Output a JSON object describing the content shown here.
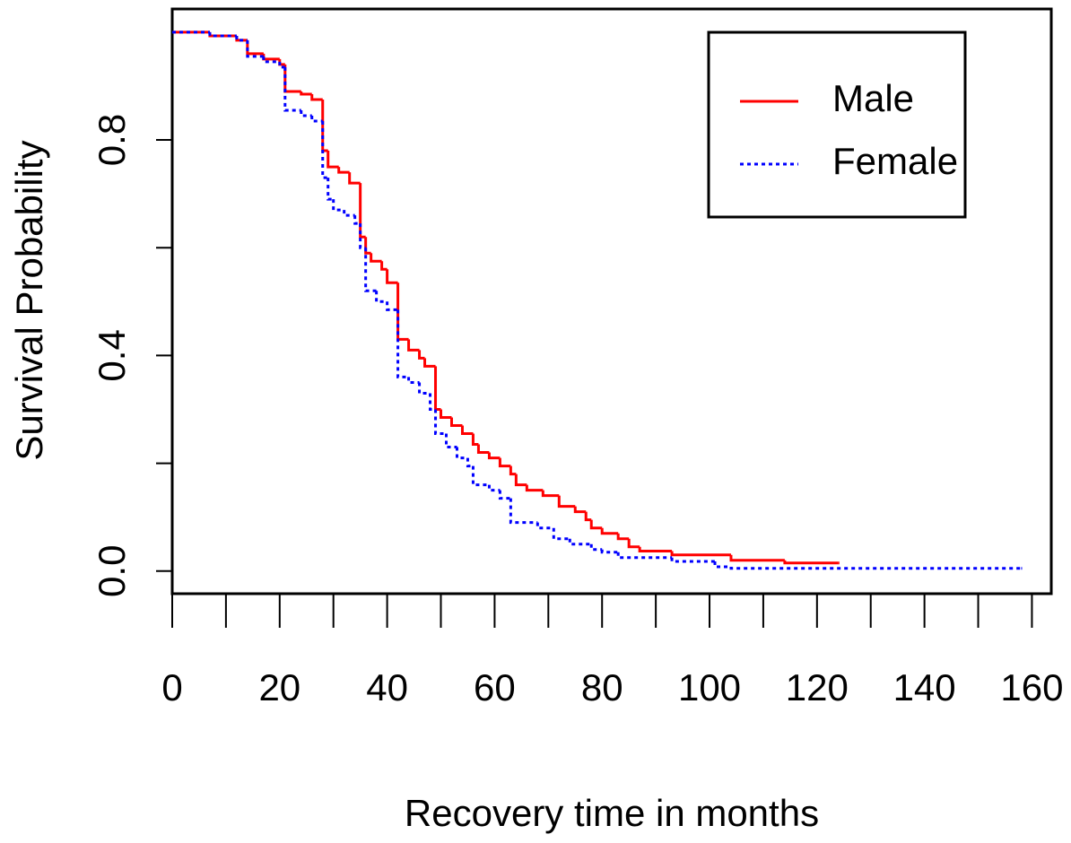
{
  "chart_data": {
    "type": "step",
    "xlabel": "Recovery time in months",
    "ylabel": "Survival Probability",
    "xlim": [
      0,
      163.6
    ],
    "ylim": [
      -0.042,
      1.043
    ],
    "xticks": [
      0,
      20,
      40,
      60,
      80,
      100,
      120,
      140,
      160
    ],
    "xticks_unlabeled": [
      10,
      30,
      50,
      70,
      90,
      110,
      130,
      150
    ],
    "yticks": [
      {
        "value": 0,
        "label": "0.0"
      },
      0.4,
      0.8
    ],
    "yticks_unlabeled": [
      0.2,
      0.6
    ],
    "legend": "topright",
    "series": [
      {
        "name": "Male",
        "color": "#ff0000",
        "dash": "solid",
        "x": [
          0,
          7,
          12,
          14,
          17,
          20,
          21,
          24,
          26,
          28,
          29,
          31,
          33,
          35,
          36,
          37,
          39,
          40,
          42,
          44,
          46,
          47,
          49,
          50,
          52,
          54,
          56,
          57,
          59,
          61,
          63,
          64,
          66,
          69,
          72,
          75,
          77,
          78,
          80,
          83,
          85,
          87,
          93,
          104,
          114,
          124
        ],
        "values": [
          1.0,
          0.993,
          0.985,
          0.96,
          0.95,
          0.94,
          0.89,
          0.885,
          0.875,
          0.78,
          0.75,
          0.74,
          0.72,
          0.62,
          0.59,
          0.575,
          0.56,
          0.535,
          0.43,
          0.41,
          0.395,
          0.38,
          0.3,
          0.285,
          0.27,
          0.255,
          0.235,
          0.22,
          0.21,
          0.195,
          0.18,
          0.16,
          0.15,
          0.14,
          0.12,
          0.11,
          0.095,
          0.08,
          0.07,
          0.06,
          0.045,
          0.037,
          0.03,
          0.02,
          0.015,
          0.015
        ]
      },
      {
        "name": "Female",
        "color": "#0000ff",
        "dash": "dotted",
        "x": [
          0,
          7,
          12,
          14,
          17,
          20,
          21,
          24,
          26,
          28,
          29,
          30,
          32,
          34,
          35,
          36,
          38,
          40,
          42,
          44,
          46,
          48,
          49,
          51,
          53,
          55,
          56,
          59,
          61,
          63,
          68,
          71,
          74,
          78,
          80,
          83,
          93,
          101,
          104,
          158
        ],
        "values": [
          1.0,
          0.993,
          0.985,
          0.955,
          0.945,
          0.935,
          0.855,
          0.845,
          0.835,
          0.73,
          0.69,
          0.67,
          0.66,
          0.645,
          0.6,
          0.52,
          0.5,
          0.485,
          0.36,
          0.35,
          0.33,
          0.3,
          0.255,
          0.23,
          0.21,
          0.195,
          0.16,
          0.15,
          0.135,
          0.09,
          0.08,
          0.06,
          0.05,
          0.04,
          0.035,
          0.025,
          0.018,
          0.008,
          0.005,
          0.005
        ]
      }
    ]
  }
}
